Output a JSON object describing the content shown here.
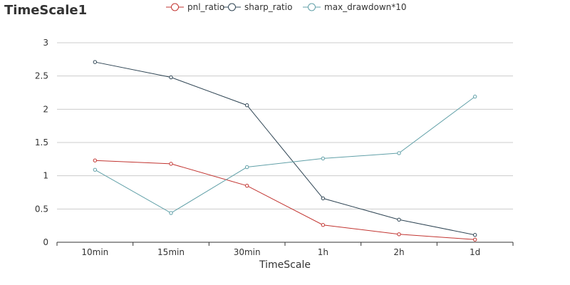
{
  "chart_data": {
    "type": "line",
    "title": "TimeScale1",
    "xlabel": "TimeScale",
    "ylabel": "",
    "categories": [
      "10min",
      "15min",
      "30min",
      "1h",
      "2h",
      "1d"
    ],
    "ylim": [
      0,
      3
    ],
    "yticks": [
      0,
      0.5,
      1,
      1.5,
      2,
      2.5,
      3
    ],
    "y_tick_labels": [
      "0",
      "0.5",
      "1",
      "1.5",
      "2",
      "2.5",
      "3"
    ],
    "grid": true,
    "legend_position": "top-center",
    "series": [
      {
        "name": "pnl_ratio",
        "color": "#c23531",
        "values": [
          1.23,
          1.18,
          0.85,
          0.26,
          0.12,
          0.04
        ]
      },
      {
        "name": "sharp_ratio",
        "color": "#2f4554",
        "values": [
          2.71,
          2.48,
          2.06,
          0.66,
          0.34,
          0.11
        ]
      },
      {
        "name": "max_drawdown*10",
        "color": "#61a0a8",
        "values": [
          1.09,
          0.44,
          1.13,
          1.26,
          1.34,
          2.19
        ]
      }
    ]
  }
}
